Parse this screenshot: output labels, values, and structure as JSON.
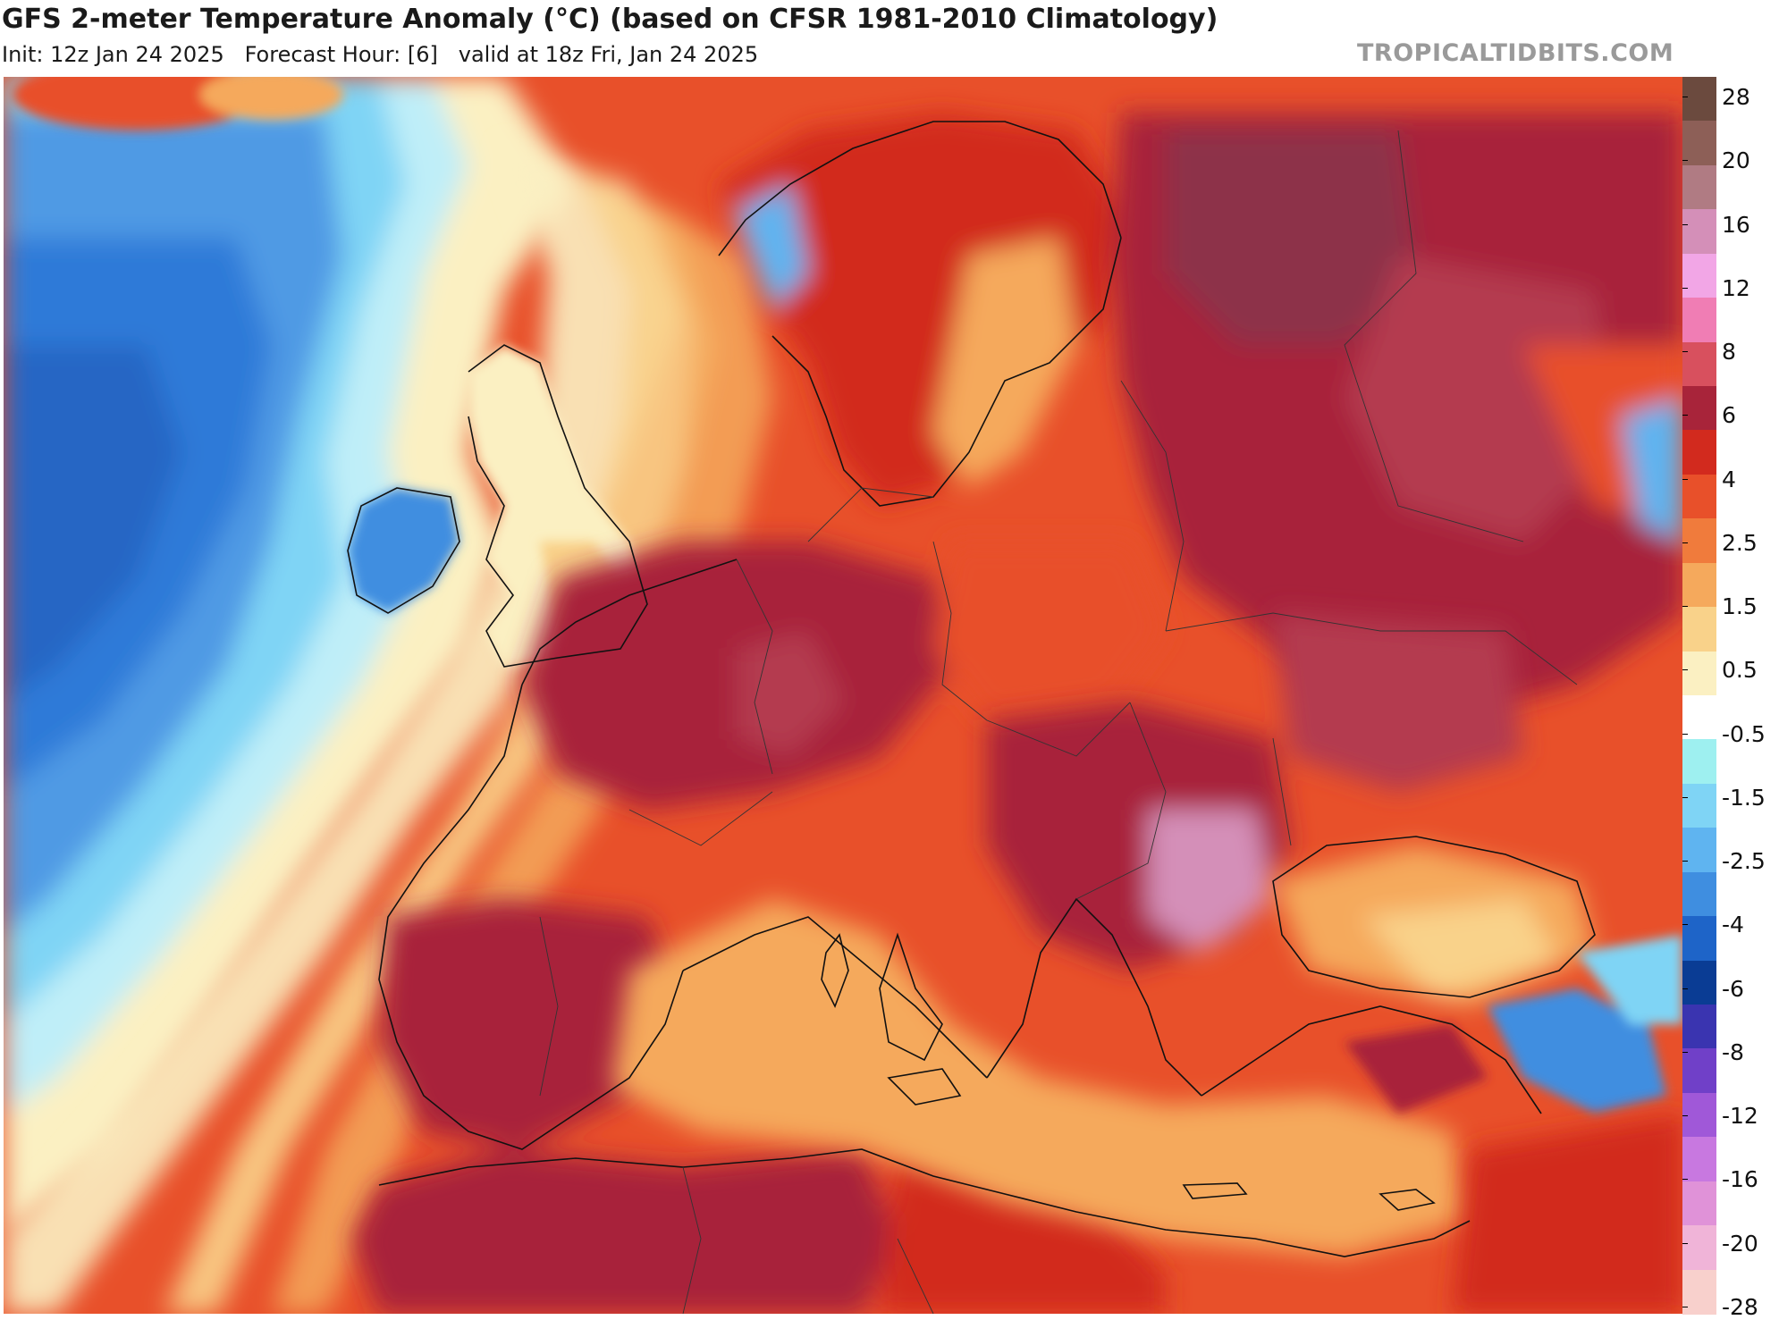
{
  "header": {
    "title": "GFS 2-meter Temperature Anomaly (°C) (based on CFSR 1981-2010 Climatology)",
    "subtitle": "Init: 12z Jan 24 2025   Forecast Hour: [6]   valid at 18z Fri, Jan 24 2025",
    "brand": "TROPICALTIDBITS.COM"
  },
  "colorbar": {
    "labels": [
      "28",
      "20",
      "16",
      "12",
      "8",
      "6",
      "4",
      "2.5",
      "1.5",
      "0.5",
      "-0.5",
      "-1.5",
      "-2.5",
      "-4",
      "-6",
      "-8",
      "-12",
      "-16",
      "-20",
      "-28"
    ],
    "colors": [
      "#6b4a3e",
      "#8d5f57",
      "#b07b83",
      "#d48fb8",
      "#f2a6e6",
      "#f07db4",
      "#d8505e",
      "#a8243a",
      "#d22a1e",
      "#e8502a",
      "#f07b3c",
      "#f5a95c",
      "#f9d28a",
      "#fbf0c2",
      "#ffffff",
      "#9ef0f0",
      "#7fd4f5",
      "#5fb4f0",
      "#3f8ee0",
      "#1e64c8",
      "#0a3c94",
      "#3a34b0",
      "#7040c8",
      "#a058d8",
      "#c878e0",
      "#e092d8",
      "#f0b4d8",
      "#f8d0cc"
    ]
  },
  "map": {
    "region": "Europe / North Atlantic / Mediterranean",
    "colors": {
      "ocean_cold": "#3f8ee0",
      "ocean_cool": "#7fd4f5",
      "neutral": "#fbf0c2",
      "warm": "#f07b3c",
      "hot": "#d22a1e",
      "very_hot": "#a8243a",
      "extreme": "#d48fb8",
      "med_sea": "#f5a95c"
    }
  }
}
